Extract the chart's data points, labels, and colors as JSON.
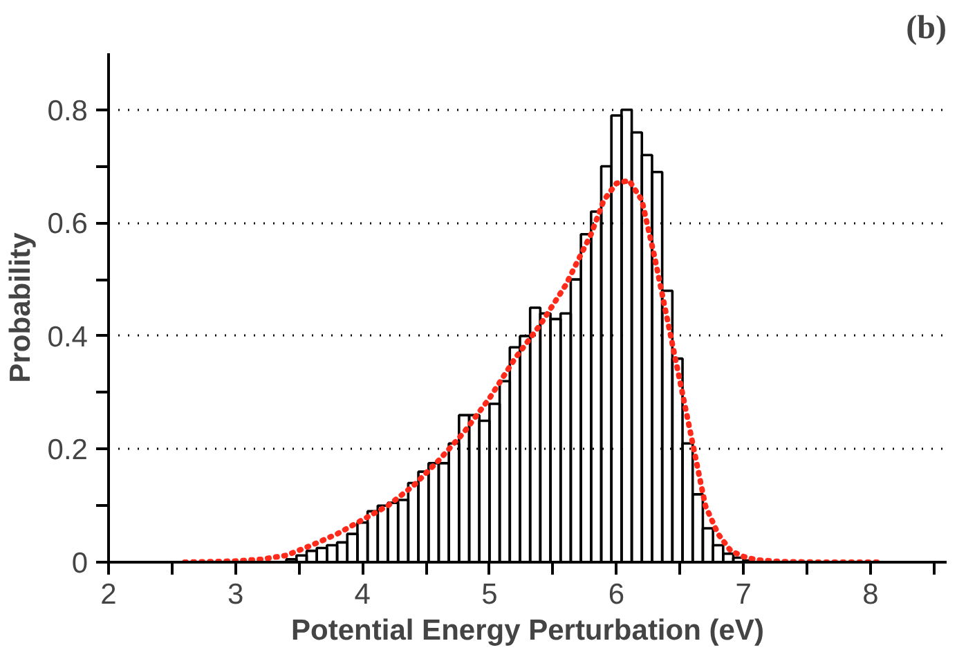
{
  "chart_data": {
    "type": "histogram",
    "title": "(b)",
    "xlabel": "Potential Energy Perturbation (eV)",
    "ylabel": "Probability",
    "xlim": [
      2,
      8.6
    ],
    "ylim": [
      0,
      0.9
    ],
    "xticks": [
      2,
      {
        "value": 2.5,
        "label": null
      },
      3,
      {
        "value": 3.5,
        "label": null
      },
      4,
      {
        "value": 4.5,
        "label": null
      },
      5,
      {
        "value": 5.5,
        "label": null
      },
      6,
      {
        "value": 6.5,
        "label": null
      },
      7,
      {
        "value": 7.5,
        "label": null
      },
      8,
      {
        "value": 8.5,
        "label": null
      }
    ],
    "yticks": [
      0,
      {
        "value": 0.1,
        "label": null
      },
      {
        "value": 0.2,
        "label": "0.2"
      },
      {
        "value": 0.3,
        "label": null
      },
      {
        "value": 0.4,
        "label": "0.4"
      },
      {
        "value": 0.5,
        "label": null
      },
      {
        "value": 0.6,
        "label": "0.6"
      },
      {
        "value": 0.7,
        "label": null
      },
      {
        "value": 0.8,
        "label": "0.8"
      }
    ],
    "grid": "y",
    "series": [
      {
        "color": "#000000",
        "bins": [
          3.4,
          3.48,
          3.56,
          3.64,
          3.72,
          3.8,
          3.88,
          3.96,
          4.04,
          4.12,
          4.2,
          4.28,
          4.36,
          4.44,
          4.52,
          4.6,
          4.68,
          4.76,
          4.84,
          4.92,
          5.0,
          5.08,
          5.16,
          5.24,
          5.32,
          5.4,
          5.48,
          5.56,
          5.64,
          5.72,
          5.8,
          5.88,
          5.96,
          6.04,
          6.12,
          6.2,
          6.28,
          6.36,
          6.44,
          6.52,
          6.6,
          6.68,
          6.76,
          6.84,
          6.92,
          7.0,
          7.08
        ],
        "values": [
          0.005,
          0.012,
          0.02,
          0.025,
          0.03,
          0.035,
          0.05,
          0.07,
          0.09,
          0.1,
          0.105,
          0.11,
          0.14,
          0.16,
          0.175,
          0.175,
          0.21,
          0.26,
          0.26,
          0.25,
          0.28,
          0.32,
          0.38,
          0.4,
          0.45,
          0.44,
          0.43,
          0.44,
          0.5,
          0.58,
          0.62,
          0.7,
          0.79,
          0.8,
          0.76,
          0.72,
          0.69,
          0.48,
          0.36,
          0.21,
          0.12,
          0.06,
          0.03,
          0.015,
          0.008,
          0.003
        ]
      },
      {
        "type": "line",
        "color": "#ff2a1a",
        "line_style": "dotted",
        "x": [
          2.6,
          3.0,
          3.2,
          3.4,
          3.6,
          3.8,
          4.0,
          4.2,
          4.4,
          4.6,
          4.8,
          5.0,
          5.2,
          5.4,
          5.6,
          5.8,
          5.9,
          6.0,
          6.1,
          6.2,
          6.3,
          6.4,
          6.5,
          6.6,
          6.7,
          6.8,
          6.9,
          7.0,
          7.1,
          7.3,
          7.6,
          8.1
        ],
        "values": [
          0,
          0.002,
          0.005,
          0.012,
          0.03,
          0.05,
          0.075,
          0.1,
          0.135,
          0.18,
          0.23,
          0.29,
          0.36,
          0.42,
          0.49,
          0.58,
          0.64,
          0.67,
          0.675,
          0.64,
          0.54,
          0.43,
          0.32,
          0.21,
          0.1,
          0.05,
          0.02,
          0.01,
          0.004,
          0.001,
          0,
          0
        ]
      }
    ]
  }
}
